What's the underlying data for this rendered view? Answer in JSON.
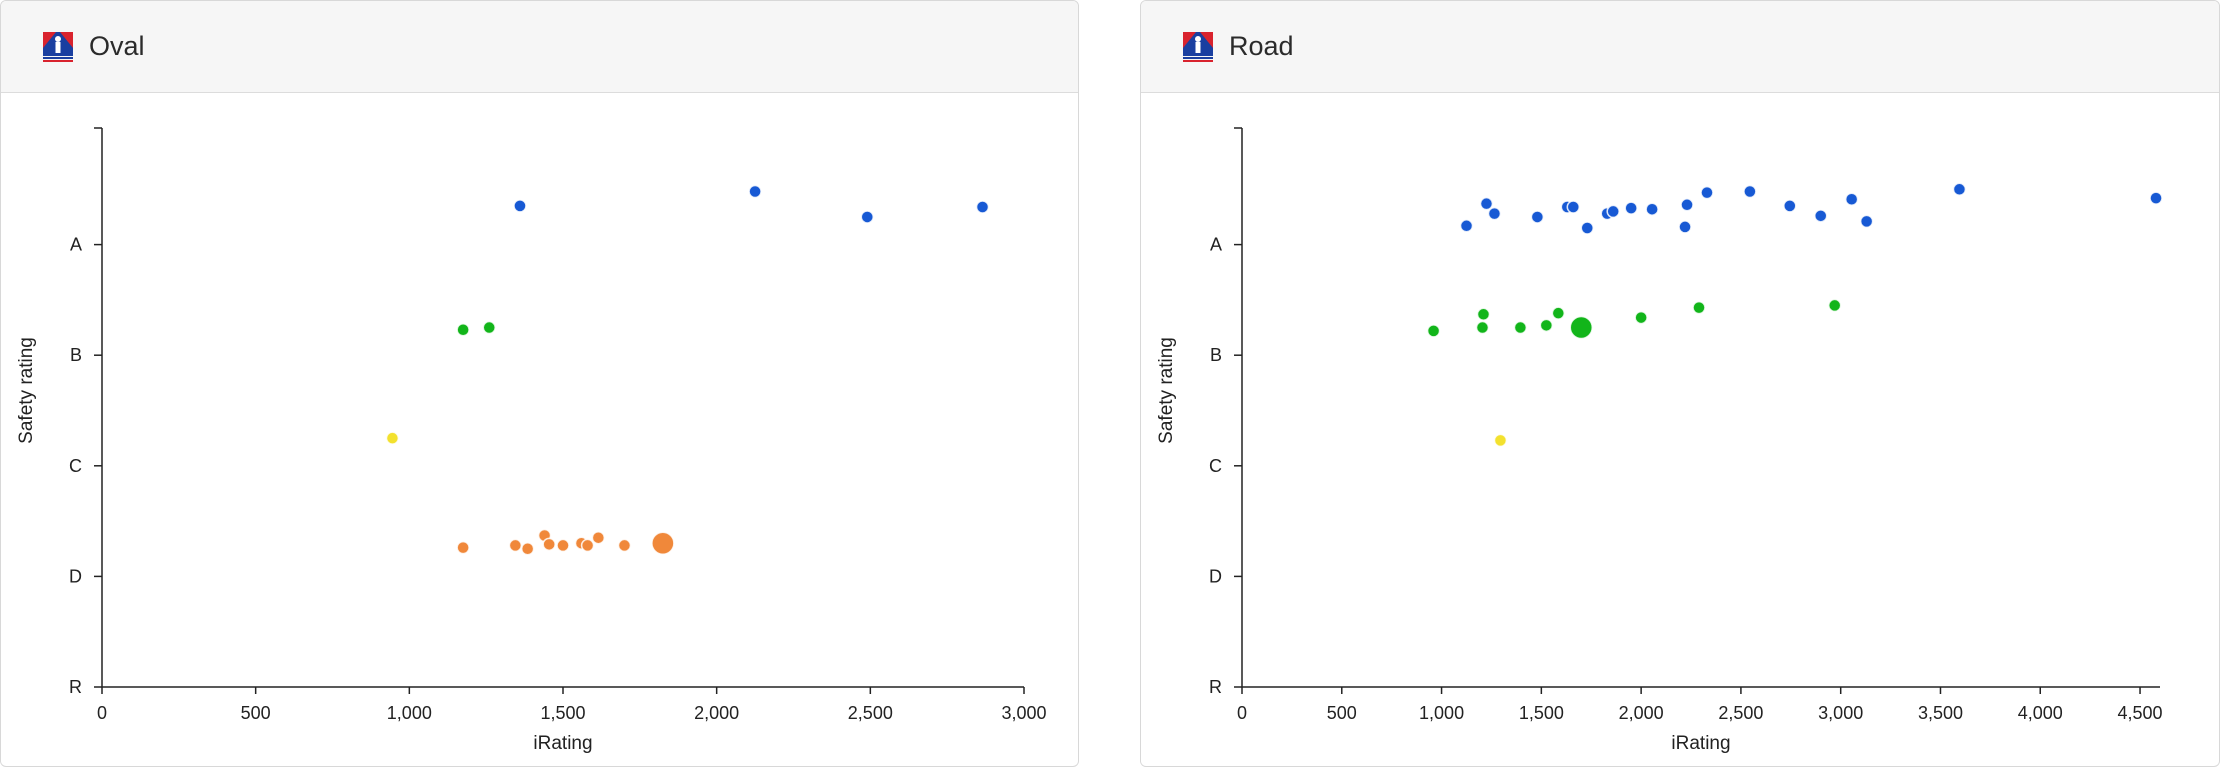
{
  "colors": {
    "A": "#1759d4",
    "B": "#12b51a",
    "C": "#f3e12e",
    "D": "#f0883a",
    "axis": "#222222",
    "logo_blue": "#1a3fa0",
    "logo_red": "#d9232e"
  },
  "panels": [
    {
      "title": "Oval",
      "logo_icon": "iracing-logo-icon",
      "chart_data": {
        "type": "scatter",
        "xlabel": "iRating",
        "ylabel": "Safety rating",
        "xlim": [
          0,
          3000
        ],
        "x_ticks": [
          0,
          500,
          1000,
          1500,
          2000,
          2500,
          3000
        ],
        "x_tick_labels": [
          "0",
          "500",
          "1,000",
          "1,500",
          "2,000",
          "2,500",
          "3,000"
        ],
        "y_levels": [
          "R",
          "D",
          "C",
          "B",
          "A"
        ],
        "y_tick_labels": [
          "R",
          "D",
          "C",
          "B",
          "A"
        ],
        "ylim": [
          0,
          5
        ],
        "grid": false,
        "points": [
          {
            "x": 1360,
            "y": 4.35,
            "license": "A",
            "size": 1
          },
          {
            "x": 2125,
            "y": 4.48,
            "license": "A",
            "size": 1
          },
          {
            "x": 2490,
            "y": 4.25,
            "license": "A",
            "size": 1
          },
          {
            "x": 2865,
            "y": 4.34,
            "license": "A",
            "size": 1
          },
          {
            "x": 1175,
            "y": 3.23,
            "license": "B",
            "size": 1
          },
          {
            "x": 1260,
            "y": 3.25,
            "license": "B",
            "size": 1
          },
          {
            "x": 945,
            "y": 2.25,
            "license": "C",
            "size": 1
          },
          {
            "x": 1175,
            "y": 1.26,
            "license": "D",
            "size": 1
          },
          {
            "x": 1345,
            "y": 1.28,
            "license": "D",
            "size": 1
          },
          {
            "x": 1385,
            "y": 1.25,
            "license": "D",
            "size": 1
          },
          {
            "x": 1440,
            "y": 1.37,
            "license": "D",
            "size": 1
          },
          {
            "x": 1455,
            "y": 1.29,
            "license": "D",
            "size": 1
          },
          {
            "x": 1500,
            "y": 1.28,
            "license": "D",
            "size": 1
          },
          {
            "x": 1560,
            "y": 1.3,
            "license": "D",
            "size": 1
          },
          {
            "x": 1580,
            "y": 1.28,
            "license": "D",
            "size": 1
          },
          {
            "x": 1615,
            "y": 1.35,
            "license": "D",
            "size": 1
          },
          {
            "x": 1700,
            "y": 1.28,
            "license": "D",
            "size": 1
          },
          {
            "x": 1825,
            "y": 1.3,
            "license": "D",
            "size": 2
          }
        ]
      }
    },
    {
      "title": "Road",
      "logo_icon": "iracing-logo-icon",
      "chart_data": {
        "type": "scatter",
        "xlabel": "iRating",
        "ylabel": "Safety rating",
        "xlim": [
          0,
          4600
        ],
        "x_ticks": [
          0,
          500,
          1000,
          1500,
          2000,
          2500,
          3000,
          3500,
          4000,
          4500
        ],
        "x_tick_labels": [
          "0",
          "500",
          "1,000",
          "1,500",
          "2,000",
          "2,500",
          "3,000",
          "3,500",
          "4,000",
          "4,500"
        ],
        "y_levels": [
          "R",
          "D",
          "C",
          "B",
          "A"
        ],
        "y_tick_labels": [
          "R",
          "D",
          "C",
          "B",
          "A"
        ],
        "ylim": [
          0,
          5
        ],
        "grid": false,
        "points": [
          {
            "x": 1125,
            "y": 4.17,
            "license": "A",
            "size": 1
          },
          {
            "x": 1225,
            "y": 4.37,
            "license": "A",
            "size": 1
          },
          {
            "x": 1265,
            "y": 4.28,
            "license": "A",
            "size": 1
          },
          {
            "x": 1480,
            "y": 4.25,
            "license": "A",
            "size": 1
          },
          {
            "x": 1630,
            "y": 4.34,
            "license": "A",
            "size": 1
          },
          {
            "x": 1660,
            "y": 4.34,
            "license": "A",
            "size": 1
          },
          {
            "x": 1730,
            "y": 4.15,
            "license": "A",
            "size": 1
          },
          {
            "x": 1830,
            "y": 4.28,
            "license": "A",
            "size": 1
          },
          {
            "x": 1860,
            "y": 4.3,
            "license": "A",
            "size": 1
          },
          {
            "x": 1950,
            "y": 4.33,
            "license": "A",
            "size": 1
          },
          {
            "x": 2055,
            "y": 4.32,
            "license": "A",
            "size": 1
          },
          {
            "x": 2220,
            "y": 4.16,
            "license": "A",
            "size": 1
          },
          {
            "x": 2230,
            "y": 4.36,
            "license": "A",
            "size": 1
          },
          {
            "x": 2330,
            "y": 4.47,
            "license": "A",
            "size": 1
          },
          {
            "x": 2545,
            "y": 4.48,
            "license": "A",
            "size": 1
          },
          {
            "x": 2745,
            "y": 4.35,
            "license": "A",
            "size": 1
          },
          {
            "x": 2900,
            "y": 4.26,
            "license": "A",
            "size": 1
          },
          {
            "x": 3055,
            "y": 4.41,
            "license": "A",
            "size": 1
          },
          {
            "x": 3130,
            "y": 4.21,
            "license": "A",
            "size": 1
          },
          {
            "x": 3595,
            "y": 4.5,
            "license": "A",
            "size": 1
          },
          {
            "x": 4580,
            "y": 4.42,
            "license": "A",
            "size": 1
          },
          {
            "x": 960,
            "y": 3.22,
            "license": "B",
            "size": 1
          },
          {
            "x": 1205,
            "y": 3.25,
            "license": "B",
            "size": 1
          },
          {
            "x": 1210,
            "y": 3.37,
            "license": "B",
            "size": 1
          },
          {
            "x": 1395,
            "y": 3.25,
            "license": "B",
            "size": 1
          },
          {
            "x": 1525,
            "y": 3.27,
            "license": "B",
            "size": 1
          },
          {
            "x": 1585,
            "y": 3.38,
            "license": "B",
            "size": 1
          },
          {
            "x": 1700,
            "y": 3.25,
            "license": "B",
            "size": 2
          },
          {
            "x": 2000,
            "y": 3.34,
            "license": "B",
            "size": 1
          },
          {
            "x": 2290,
            "y": 3.43,
            "license": "B",
            "size": 1
          },
          {
            "x": 2970,
            "y": 3.45,
            "license": "B",
            "size": 1
          },
          {
            "x": 1295,
            "y": 2.23,
            "license": "C",
            "size": 1
          }
        ]
      }
    }
  ]
}
